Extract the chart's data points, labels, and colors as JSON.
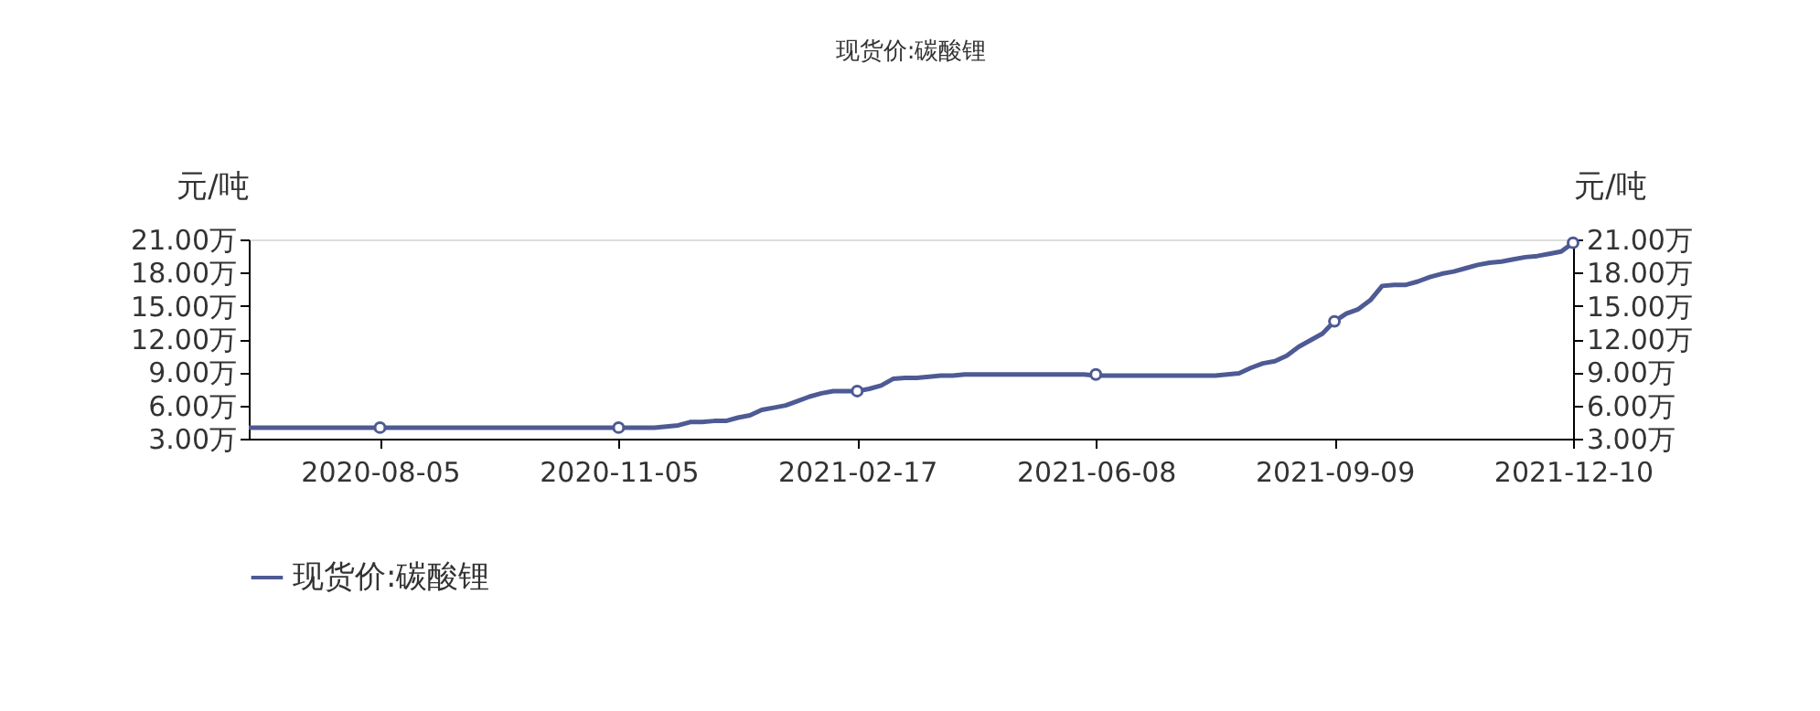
{
  "chart_data": {
    "type": "line",
    "title": "现货价:碳酸锂",
    "ylabel": "元/吨",
    "y2label": "元/吨",
    "categories": [
      null,
      null,
      null,
      null,
      null,
      null,
      null,
      null,
      null,
      null,
      null,
      "2020-08-05",
      null,
      null,
      null,
      null,
      null,
      null,
      null,
      null,
      null,
      null,
      null,
      null,
      null,
      null,
      null,
      null,
      null,
      null,
      null,
      "2020-11-05",
      null,
      null,
      null,
      null,
      null,
      null,
      null,
      null,
      null,
      null,
      null,
      null,
      null,
      null,
      null,
      null,
      null,
      null,
      null,
      "2021-02-17",
      null,
      null,
      null,
      null,
      null,
      null,
      null,
      null,
      null,
      null,
      null,
      null,
      null,
      null,
      null,
      null,
      null,
      null,
      null,
      "2021-06-08",
      null,
      null,
      null,
      null,
      null,
      null,
      null,
      null,
      null,
      null,
      null,
      null,
      null,
      null,
      null,
      null,
      null,
      null,
      null,
      "2021-09-09",
      null,
      null,
      null,
      null,
      null,
      null,
      null,
      null,
      null,
      null,
      null,
      null,
      null,
      null,
      null,
      null,
      null,
      null,
      null,
      "2021-12-10"
    ],
    "series": [
      {
        "name": "现货价:碳酸锂",
        "color": "#4e5a94",
        "values": [
          4.0,
          4.0,
          4.0,
          4.0,
          4.0,
          4.0,
          4.0,
          4.0,
          4.0,
          4.0,
          4.0,
          4.0,
          4.0,
          4.0,
          4.0,
          4.0,
          4.0,
          4.0,
          4.0,
          4.0,
          4.0,
          4.0,
          4.0,
          4.0,
          4.0,
          4.0,
          4.0,
          4.0,
          4.0,
          4.0,
          4.0,
          4.0,
          4.0,
          4.0,
          4.0,
          4.1,
          4.2,
          4.5,
          4.5,
          4.6,
          4.6,
          4.9,
          5.1,
          5.6,
          5.8,
          6.0,
          6.4,
          6.8,
          7.1,
          7.3,
          7.3,
          7.3,
          7.5,
          7.8,
          8.4,
          8.5,
          8.5,
          8.6,
          8.7,
          8.7,
          8.8,
          8.8,
          8.8,
          8.8,
          8.8,
          8.8,
          8.8,
          8.8,
          8.8,
          8.8,
          8.8,
          8.7,
          8.7,
          8.7,
          8.7,
          8.7,
          8.7,
          8.7,
          8.7,
          8.7,
          8.7,
          8.7,
          8.8,
          8.9,
          9.4,
          9.8,
          10.0,
          10.5,
          11.3,
          11.9,
          12.5,
          13.6,
          14.3,
          14.7,
          15.5,
          16.8,
          16.9,
          16.9,
          17.2,
          17.6,
          17.9,
          18.1,
          18.4,
          18.7,
          18.9,
          19.0,
          19.2,
          19.4,
          19.5,
          19.7,
          19.9,
          20.7
        ]
      },
      {
        "type": "scatter",
        "color": "#4e5a94",
        "marker": "circle",
        "values": [
          null,
          null,
          null,
          null,
          null,
          null,
          null,
          null,
          null,
          null,
          null,
          4.0,
          null,
          null,
          null,
          null,
          null,
          null,
          null,
          null,
          null,
          null,
          null,
          null,
          null,
          null,
          null,
          null,
          null,
          null,
          null,
          4.0,
          null,
          null,
          null,
          null,
          null,
          null,
          null,
          null,
          null,
          null,
          null,
          null,
          null,
          null,
          null,
          null,
          null,
          null,
          null,
          7.3,
          null,
          null,
          null,
          null,
          null,
          null,
          null,
          null,
          null,
          null,
          null,
          null,
          null,
          null,
          null,
          null,
          null,
          null,
          null,
          8.8,
          null,
          null,
          null,
          null,
          null,
          null,
          null,
          null,
          null,
          null,
          null,
          null,
          null,
          null,
          null,
          null,
          null,
          null,
          null,
          13.6,
          null,
          null,
          null,
          null,
          null,
          null,
          null,
          null,
          null,
          null,
          null,
          null,
          null,
          null,
          null,
          null,
          null,
          null,
          null,
          20.7
        ]
      }
    ],
    "ylim": [
      3,
      21
    ],
    "yticks": [
      {
        "value": 3,
        "label": "3.00万"
      },
      {
        "value": 6,
        "label": "6.00万"
      },
      {
        "value": 9,
        "label": "9.00万"
      },
      {
        "value": 12,
        "label": "12.00万"
      },
      {
        "value": 15,
        "label": "15.00万"
      },
      {
        "value": 18,
        "label": "18.00万"
      },
      {
        "value": 21,
        "label": "21.00万"
      }
    ],
    "y2lim": [
      3,
      21
    ],
    "y2ticks": [
      {
        "value": 3,
        "label": "3.00万"
      },
      {
        "value": 6,
        "label": "6.00万"
      },
      {
        "value": 9,
        "label": "9.00万"
      },
      {
        "value": 12,
        "label": "12.00万"
      },
      {
        "value": 15,
        "label": "15.00万"
      },
      {
        "value": 18,
        "label": "18.00万"
      },
      {
        "value": 21,
        "label": "21.00万"
      }
    ],
    "grid": false,
    "legend": "bottom",
    "line_style": "solid"
  }
}
